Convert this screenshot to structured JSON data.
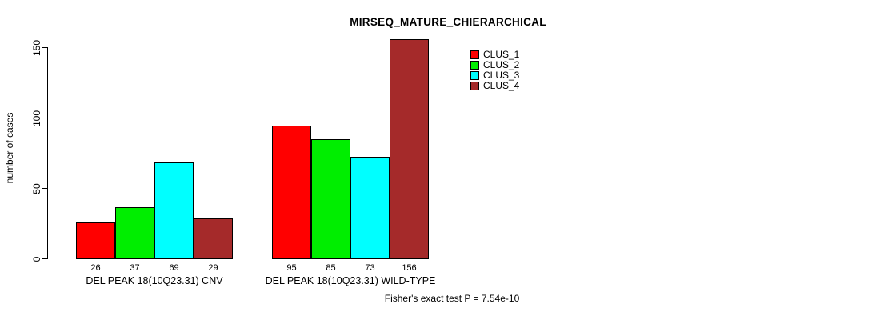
{
  "chart_data": {
    "type": "bar",
    "title": "MIRSEQ_MATURE_CHIERARCHICAL",
    "ylabel": "number of cases",
    "xlabel": "",
    "categories": [
      "DEL PEAK 18(10Q23.31) CNV",
      "DEL PEAK 18(10Q23.31) WILD-TYPE"
    ],
    "series": [
      {
        "name": "CLUS_1",
        "color": "#FF0000",
        "values": [
          26,
          95
        ]
      },
      {
        "name": "CLUS_2",
        "color": "#00EE00",
        "values": [
          37,
          85
        ]
      },
      {
        "name": "CLUS_3",
        "color": "#00FFFF",
        "values": [
          69,
          73
        ]
      },
      {
        "name": "CLUS_4",
        "color": "#A52A2A",
        "values": [
          29,
          156
        ]
      }
    ],
    "yticks": [
      0,
      50,
      100,
      150
    ],
    "ylim": [
      0,
      160
    ],
    "grid": false,
    "legend_position": "top-right",
    "annotation": "Fisher's exact test P = 7.54e-10"
  }
}
